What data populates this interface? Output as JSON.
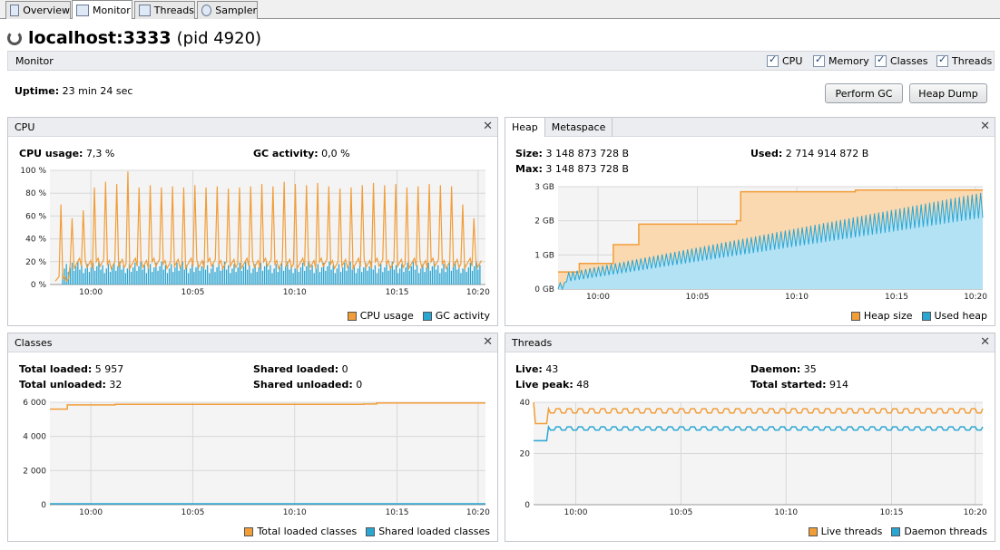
{
  "tabs": [
    {
      "label": "Overview",
      "icon": "overview-icon"
    },
    {
      "label": "Monitor",
      "icon": "monitor-icon"
    },
    {
      "label": "Threads",
      "icon": "threads-icon"
    },
    {
      "label": "Sampler",
      "icon": "sampler-icon"
    }
  ],
  "header": {
    "host": "localhost:3333",
    "pid": "(pid 4920)"
  },
  "monitor": {
    "label": "Monitor",
    "checkboxes": [
      {
        "label": "CPU",
        "checked": true
      },
      {
        "label": "Memory",
        "checked": true
      },
      {
        "label": "Classes",
        "checked": true
      },
      {
        "label": "Threads",
        "checked": true
      }
    ],
    "uptime_label": "Uptime:",
    "uptime_value": "23 min 24 sec",
    "perform_gc": "Perform GC",
    "heap_dump": "Heap Dump"
  },
  "colors": {
    "orange": "#f19d38",
    "blue": "#2aa6d3",
    "orange_fill": "#fbd9b0",
    "blue_fill": "#b3e2f4"
  },
  "time_ticks": [
    "10:00",
    "10:05",
    "10:10",
    "10:15",
    "10:20"
  ],
  "cpu": {
    "title": "CPU",
    "usage_label": "CPU usage:",
    "usage_value": "7,3 %",
    "gc_label": "GC activity:",
    "gc_value": "0,0 %",
    "legend": [
      "CPU usage",
      "GC activity"
    ]
  },
  "heap": {
    "tabs": [
      "Heap",
      "Metaspace"
    ],
    "size_label": "Size:",
    "size_value": "3 148 873 728 B",
    "max_label": "Max:",
    "max_value": "3 148 873 728 B",
    "used_label": "Used:",
    "used_value": "2 714 914 872 B",
    "legend": [
      "Heap size",
      "Used heap"
    ]
  },
  "classes": {
    "title": "Classes",
    "total_loaded_label": "Total loaded:",
    "total_loaded_value": "5 957",
    "total_unloaded_label": "Total unloaded:",
    "total_unloaded_value": "32",
    "shared_loaded_label": "Shared loaded:",
    "shared_loaded_value": "0",
    "shared_unloaded_label": "Shared unloaded:",
    "shared_unloaded_value": "0",
    "legend": [
      "Total loaded classes",
      "Shared loaded classes"
    ]
  },
  "threads": {
    "title": "Threads",
    "live_label": "Live:",
    "live_value": "43",
    "live_peak_label": "Live peak:",
    "live_peak_value": "48",
    "daemon_label": "Daemon:",
    "daemon_value": "35",
    "total_started_label": "Total started:",
    "total_started_value": "914",
    "legend": [
      "Live threads",
      "Daemon threads"
    ]
  },
  "chart_data": [
    {
      "type": "line",
      "name": "CPU",
      "x_range": [
        "09:58",
        "10:21"
      ],
      "ylim": [
        0,
        100
      ],
      "y_ticks": [
        "0 %",
        "20 %",
        "40 %",
        "60 %",
        "80 %",
        "100 %"
      ],
      "x_ticks": [
        "10:00",
        "10:05",
        "10:10",
        "10:15",
        "10:20"
      ],
      "series": [
        {
          "name": "CPU usage",
          "spike_peaks_percent": [
            70,
            58,
            65,
            85,
            90,
            88,
            99,
            85,
            87,
            85,
            86,
            85,
            87,
            85,
            86,
            84,
            85,
            86,
            88,
            86,
            90,
            88,
            87,
            89,
            86,
            84,
            85,
            87,
            89,
            87,
            88,
            85,
            86,
            88,
            87,
            86
          ],
          "baseline_percent": 20
        },
        {
          "name": "GC activity",
          "baseline_percent": 18
        }
      ],
      "legend": [
        "CPU usage",
        "GC activity"
      ],
      "grid": true
    },
    {
      "type": "area",
      "name": "Heap",
      "x_range": [
        "09:58",
        "10:21"
      ],
      "ylim": [
        0,
        3
      ],
      "y_ticks": [
        "0 GB",
        "1 GB",
        "2 GB",
        "3 GB"
      ],
      "x_ticks": [
        "10:00",
        "10:05",
        "10:10",
        "10:15",
        "10:20"
      ],
      "series": [
        {
          "name": "Heap size",
          "points": [
            [
              0,
              0.5
            ],
            [
              0.05,
              0.75
            ],
            [
              0.13,
              1.3
            ],
            [
              0.19,
              1.9
            ],
            [
              0.3,
              1.9
            ],
            [
              0.42,
              2.0
            ],
            [
              0.43,
              2.85
            ],
            [
              0.55,
              2.85
            ],
            [
              0.7,
              2.9
            ],
            [
              1.0,
              2.9
            ]
          ]
        },
        {
          "name": "Used heap",
          "points": [
            [
              0,
              0
            ],
            [
              0.1,
              0.3
            ],
            [
              0.2,
              0.8
            ],
            [
              0.4,
              1.3
            ],
            [
              0.6,
              1.7
            ],
            [
              0.8,
              2.1
            ],
            [
              1.0,
              2.5
            ]
          ]
        }
      ],
      "legend": [
        "Heap size",
        "Used heap"
      ],
      "grid": true
    },
    {
      "type": "line",
      "name": "Classes",
      "x_range": [
        "09:58",
        "10:21"
      ],
      "ylim": [
        0,
        6000
      ],
      "y_ticks": [
        "0",
        "2 000",
        "4 000",
        "6 000"
      ],
      "x_ticks": [
        "10:00",
        "10:05",
        "10:10",
        "10:15",
        "10:20"
      ],
      "series": [
        {
          "name": "Total loaded classes",
          "points": [
            [
              0,
              5600
            ],
            [
              0.04,
              5850
            ],
            [
              0.15,
              5880
            ],
            [
              0.72,
              5900
            ],
            [
              0.75,
              5957
            ],
            [
              1.0,
              5957
            ]
          ]
        },
        {
          "name": "Shared loaded classes",
          "points": [
            [
              0,
              0
            ],
            [
              1.0,
              0
            ]
          ]
        }
      ],
      "legend": [
        "Total loaded classes",
        "Shared loaded classes"
      ],
      "grid": true
    },
    {
      "type": "line",
      "name": "Threads",
      "x_range": [
        "09:58",
        "10:21"
      ],
      "ylim": [
        0,
        48
      ],
      "y_ticks": [
        "0",
        "20",
        "40"
      ],
      "x_ticks": [
        "10:00",
        "10:05",
        "10:10",
        "10:15",
        "10:20"
      ],
      "series": [
        {
          "name": "Live threads",
          "base": 43,
          "peak": 48
        },
        {
          "name": "Daemon threads",
          "base": 35
        }
      ],
      "legend": [
        "Live threads",
        "Daemon threads"
      ],
      "grid": true
    }
  ]
}
